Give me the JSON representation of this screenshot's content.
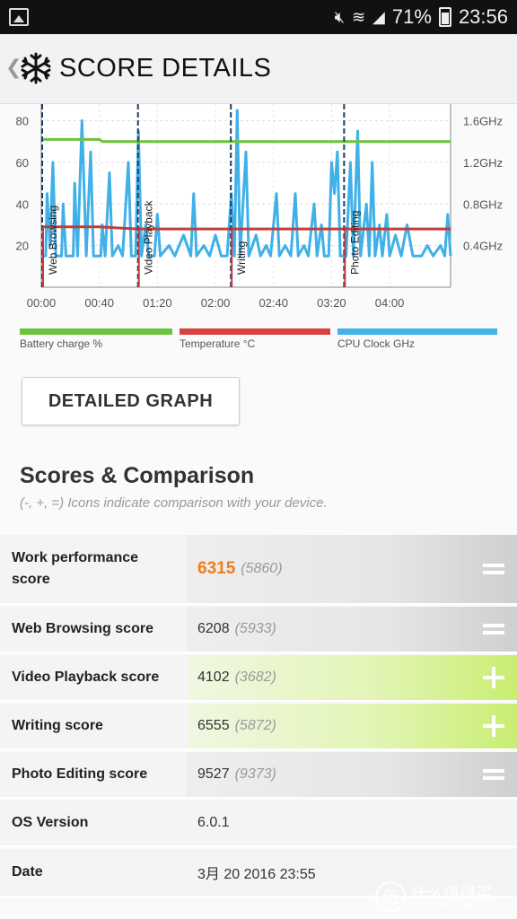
{
  "status_bar": {
    "battery_percent": "71%",
    "time": "23:56",
    "icons": [
      "image-icon",
      "mute-icon",
      "wifi-icon",
      "signal-icon",
      "battery-icon"
    ]
  },
  "app_bar": {
    "back_glyph": "❮",
    "title": "SCORE DETAILS",
    "logo_icon": "snowflake-icon"
  },
  "chart_data": {
    "type": "line",
    "x_ticks": [
      "00:00",
      "00:40",
      "01:20",
      "02:00",
      "02:40",
      "03:20",
      "04:00"
    ],
    "y_left_ticks": [
      "20",
      "40",
      "60",
      "80"
    ],
    "y_right_ticks": [
      "0.4GHz",
      "0.8GHz",
      "1.2GHz",
      "1.6GHz"
    ],
    "y_left_range": [
      0,
      80
    ],
    "y_right_range": [
      0,
      1.6
    ],
    "x_range_minutes": [
      0,
      282
    ],
    "segments": [
      {
        "name": "Web Browsing",
        "start_min": 0
      },
      {
        "name": "Video Playback",
        "start_min": 66
      },
      {
        "name": "Writing",
        "start_min": 130
      },
      {
        "name": "Photo Editing",
        "start_min": 208
      }
    ],
    "series": [
      {
        "name": "Battery charge %",
        "color": "#6cc43c",
        "points": [
          [
            0,
            71
          ],
          [
            40,
            71
          ],
          [
            42,
            70
          ],
          [
            282,
            70
          ]
        ]
      },
      {
        "name": "Temperature °C",
        "color": "#c33c3c",
        "points": [
          [
            0,
            29
          ],
          [
            40,
            29
          ],
          [
            66,
            28
          ],
          [
            130,
            28
          ],
          [
            208,
            28
          ],
          [
            282,
            28
          ]
        ]
      },
      {
        "name": "CPU Clock GHz",
        "color": "#3fb0e8",
        "points": [
          [
            0,
            0.3
          ],
          [
            3,
            0.3
          ],
          [
            4,
            0.9
          ],
          [
            6,
            0.4
          ],
          [
            8,
            1.2
          ],
          [
            10,
            0.3
          ],
          [
            14,
            0.3
          ],
          [
            15,
            0.8
          ],
          [
            17,
            0.3
          ],
          [
            22,
            0.3
          ],
          [
            23,
            1.0
          ],
          [
            25,
            0.3
          ],
          [
            28,
            1.6
          ],
          [
            31,
            0.3
          ],
          [
            34,
            1.3
          ],
          [
            36,
            0.3
          ],
          [
            41,
            0.3
          ],
          [
            42,
            0.6
          ],
          [
            44,
            0.3
          ],
          [
            47,
            1.1
          ],
          [
            49,
            0.3
          ],
          [
            53,
            0.4
          ],
          [
            56,
            0.3
          ],
          [
            60,
            1.2
          ],
          [
            62,
            0.3
          ],
          [
            65,
            0.3
          ],
          [
            67,
            1.5
          ],
          [
            69,
            0.3
          ],
          [
            72,
            0.6
          ],
          [
            74,
            0.3
          ],
          [
            78,
            0.3
          ],
          [
            80,
            0.7
          ],
          [
            82,
            0.3
          ],
          [
            88,
            0.4
          ],
          [
            92,
            0.3
          ],
          [
            98,
            0.5
          ],
          [
            103,
            0.3
          ],
          [
            105,
            0.9
          ],
          [
            107,
            0.3
          ],
          [
            112,
            0.4
          ],
          [
            116,
            0.3
          ],
          [
            120,
            0.5
          ],
          [
            124,
            0.3
          ],
          [
            128,
            0.3
          ],
          [
            131,
            0.9
          ],
          [
            133,
            0.3
          ],
          [
            135,
            1.7
          ],
          [
            137,
            0.3
          ],
          [
            141,
            1.3
          ],
          [
            143,
            0.3
          ],
          [
            148,
            0.5
          ],
          [
            151,
            0.3
          ],
          [
            155,
            0.4
          ],
          [
            158,
            0.3
          ],
          [
            162,
            0.9
          ],
          [
            164,
            0.3
          ],
          [
            168,
            0.4
          ],
          [
            172,
            0.3
          ],
          [
            175,
            0.9
          ],
          [
            177,
            0.3
          ],
          [
            181,
            0.4
          ],
          [
            184,
            0.3
          ],
          [
            188,
            0.8
          ],
          [
            190,
            0.3
          ],
          [
            193,
            0.6
          ],
          [
            195,
            0.3
          ],
          [
            198,
            0.3
          ],
          [
            200,
            1.2
          ],
          [
            202,
            0.9
          ],
          [
            204,
            1.3
          ],
          [
            206,
            0.3
          ],
          [
            210,
            0.3
          ],
          [
            213,
            1.2
          ],
          [
            215,
            0.3
          ],
          [
            218,
            1.5
          ],
          [
            220,
            0.3
          ],
          [
            224,
            0.8
          ],
          [
            226,
            0.3
          ],
          [
            228,
            1.2
          ],
          [
            230,
            0.3
          ],
          [
            233,
            0.6
          ],
          [
            235,
            0.3
          ],
          [
            238,
            0.7
          ],
          [
            240,
            0.3
          ],
          [
            244,
            0.5
          ],
          [
            248,
            0.3
          ],
          [
            252,
            0.6
          ],
          [
            256,
            0.3
          ],
          [
            262,
            0.3
          ],
          [
            266,
            0.4
          ],
          [
            270,
            0.3
          ],
          [
            275,
            0.4
          ],
          [
            278,
            0.3
          ],
          [
            280,
            0.7
          ],
          [
            282,
            0.3
          ]
        ]
      }
    ]
  },
  "legend": [
    {
      "label": "Battery charge %",
      "color": "#6cc43c"
    },
    {
      "label": "Temperature °C",
      "color": "#d94141"
    },
    {
      "label": "CPU Clock GHz",
      "color": "#42b3e8"
    }
  ],
  "detail_button": {
    "label": "DETAILED GRAPH"
  },
  "section": {
    "title": "Scores & Comparison",
    "subtitle": "(-, +, =) Icons indicate comparison with your device."
  },
  "rows": [
    {
      "label": "Work performance score",
      "value": "6315",
      "compare": "(5860)",
      "sign": "eq"
    },
    {
      "label": "Web Browsing score",
      "value": "6208",
      "compare": "(5933)",
      "sign": "eq"
    },
    {
      "label": "Video Playback score",
      "value": "4102",
      "compare": "(3682)",
      "sign": "plus"
    },
    {
      "label": "Writing score",
      "value": "6555",
      "compare": "(5872)",
      "sign": "plus"
    },
    {
      "label": "Photo Editing score",
      "value": "9527",
      "compare": "(9373)",
      "sign": "eq"
    },
    {
      "label": "OS Version",
      "value": "6.0.1",
      "compare": "",
      "sign": ""
    },
    {
      "label": "Date",
      "value": "3月 20 2016 23:55",
      "compare": "",
      "sign": ""
    }
  ],
  "watermark": {
    "glyph": "值",
    "text": "什么值得买",
    "sub": "SMZDM.COM"
  }
}
